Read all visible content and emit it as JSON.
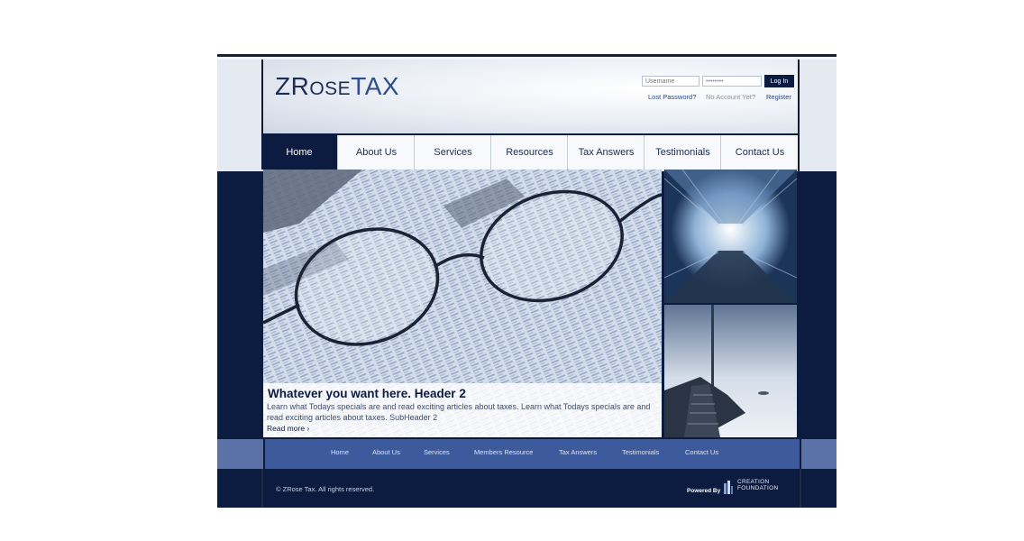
{
  "header": {
    "logo_main": "ZR",
    "logo_small": "OSE",
    "logo_tax": "TAX",
    "login": {
      "username_placeholder": "Username",
      "password_value": "••••••••",
      "login_button": "Log In",
      "lost_password": "Lost Password?",
      "no_account": "No Account Yet?",
      "register": "Register"
    }
  },
  "nav": {
    "items": [
      {
        "label": "Home",
        "active": true
      },
      {
        "label": "About Us"
      },
      {
        "label": "Services"
      },
      {
        "label": "Resources"
      },
      {
        "label": "Tax Answers"
      },
      {
        "label": "Testimonials"
      },
      {
        "label": "Contact Us"
      }
    ]
  },
  "hero": {
    "title": "Whatever you want here. Header 2",
    "text": "Learn what Todays specials are and read exciting articles about taxes. Learn what Todays specials are and read exciting articles about taxes. SubHeader 2",
    "read_more": "Read more ›"
  },
  "footer_nav": {
    "items": [
      "Home",
      "About Us",
      "Services",
      "Members Resource",
      "Tax Answers",
      "Testimonials",
      "Contact Us"
    ]
  },
  "footer": {
    "copyright": "©  ZRose Tax. All rights reserved.",
    "powered_by": "Powered By",
    "creation_line1": "CREATION",
    "creation_line2": "FOUNDATION"
  },
  "colors": {
    "navy": "#0c1b40",
    "footer_blue": "#3c5a9c",
    "accent": "#2e4d8c"
  }
}
